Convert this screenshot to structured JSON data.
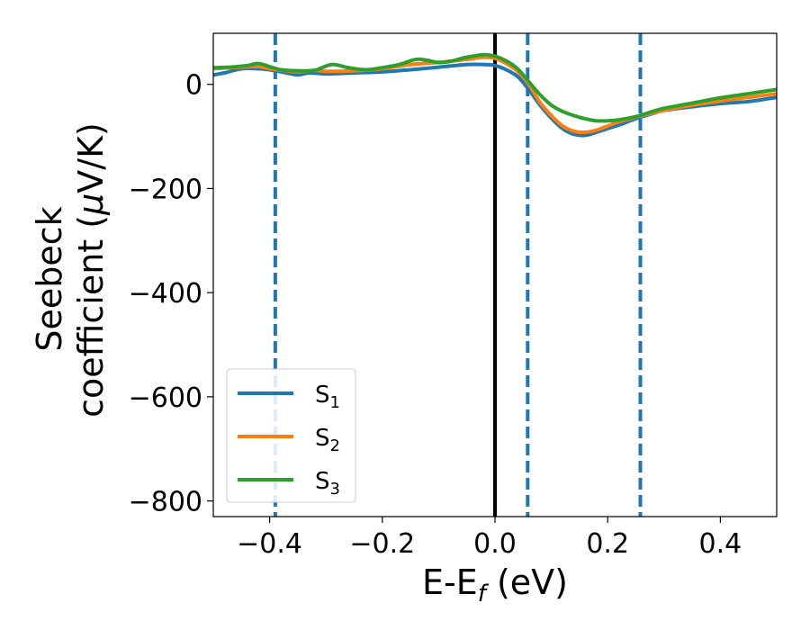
{
  "chart_data": {
    "type": "line",
    "xlabel": {
      "main": "E-E",
      "sub": "f",
      "unit": " (eV)"
    },
    "ylabel": {
      "line1": "Seebeck",
      "line2_main": "coefficient  (",
      "line2_mu": "μ",
      "line2_unit": "V/K)"
    },
    "xlim": [
      -0.5,
      0.5
    ],
    "ylim": [
      -830,
      98
    ],
    "xticks": [
      -0.4,
      -0.2,
      0.0,
      0.2,
      0.4
    ],
    "xtick_labels": [
      "−0.4",
      "−0.2",
      "0.0",
      "0.2",
      "0.4"
    ],
    "yticks": [
      0,
      -200,
      -400,
      -600,
      -800
    ],
    "ytick_labels": [
      "0",
      "−200",
      "−400",
      "−600",
      "−800"
    ],
    "grid": false,
    "legend_position": "lower-left",
    "vlines": [
      {
        "x": -0.39,
        "style": "dashed",
        "color": "#1f77b4"
      },
      {
        "x": 0.0,
        "style": "solid",
        "color": "#000000"
      },
      {
        "x": 0.058,
        "style": "dashed",
        "color": "#1f77b4"
      },
      {
        "x": 0.258,
        "style": "dashed",
        "color": "#1f77b4"
      }
    ],
    "series": [
      {
        "name": "S",
        "sub": "1",
        "color": "#1f77b4",
        "x": [
          -0.5,
          -0.48,
          -0.45,
          -0.42,
          -0.4,
          -0.37,
          -0.35,
          -0.33,
          -0.3,
          -0.25,
          -0.2,
          -0.15,
          -0.1,
          -0.05,
          -0.02,
          0.0,
          0.02,
          0.04,
          0.06,
          0.08,
          0.1,
          0.12,
          0.14,
          0.16,
          0.18,
          0.2,
          0.22,
          0.25,
          0.28,
          0.3,
          0.35,
          0.4,
          0.45,
          0.5
        ],
        "y": [
          18,
          22,
          30,
          30,
          28,
          22,
          18,
          22,
          20,
          22,
          24,
          28,
          33,
          38,
          38,
          36,
          28,
          15,
          -10,
          -40,
          -65,
          -85,
          -96,
          -98,
          -92,
          -85,
          -78,
          -66,
          -56,
          -50,
          -43,
          -37,
          -33,
          -25
        ]
      },
      {
        "name": "S",
        "sub": "2",
        "color": "#ff7f0e",
        "x": [
          -0.5,
          -0.47,
          -0.45,
          -0.42,
          -0.4,
          -0.37,
          -0.35,
          -0.32,
          -0.3,
          -0.25,
          -0.2,
          -0.15,
          -0.1,
          -0.05,
          -0.02,
          0.0,
          0.02,
          0.04,
          0.06,
          0.08,
          0.1,
          0.12,
          0.14,
          0.16,
          0.18,
          0.2,
          0.22,
          0.25,
          0.28,
          0.3,
          0.35,
          0.4,
          0.45,
          0.5
        ],
        "y": [
          30,
          32,
          33,
          34,
          30,
          26,
          24,
          27,
          25,
          26,
          30,
          38,
          42,
          48,
          52,
          50,
          40,
          25,
          0,
          -35,
          -60,
          -80,
          -90,
          -92,
          -88,
          -80,
          -72,
          -63,
          -55,
          -50,
          -40,
          -32,
          -25,
          -18
        ]
      },
      {
        "name": "S",
        "sub": "3",
        "color": "#2ca02c",
        "x": [
          -0.5,
          -0.47,
          -0.44,
          -0.42,
          -0.4,
          -0.38,
          -0.35,
          -0.32,
          -0.29,
          -0.26,
          -0.23,
          -0.2,
          -0.17,
          -0.14,
          -0.12,
          -0.1,
          -0.08,
          -0.05,
          -0.02,
          0.0,
          0.02,
          0.04,
          0.06,
          0.08,
          0.1,
          0.12,
          0.14,
          0.16,
          0.18,
          0.2,
          0.22,
          0.25,
          0.28,
          0.3,
          0.35,
          0.4,
          0.45,
          0.5
        ],
        "y": [
          32,
          33,
          36,
          40,
          34,
          28,
          26,
          27,
          38,
          32,
          28,
          32,
          38,
          48,
          46,
          42,
          44,
          52,
          57,
          54,
          45,
          30,
          5,
          -20,
          -40,
          -52,
          -60,
          -66,
          -70,
          -70,
          -68,
          -62,
          -52,
          -46,
          -36,
          -26,
          -18,
          -10
        ]
      }
    ]
  }
}
